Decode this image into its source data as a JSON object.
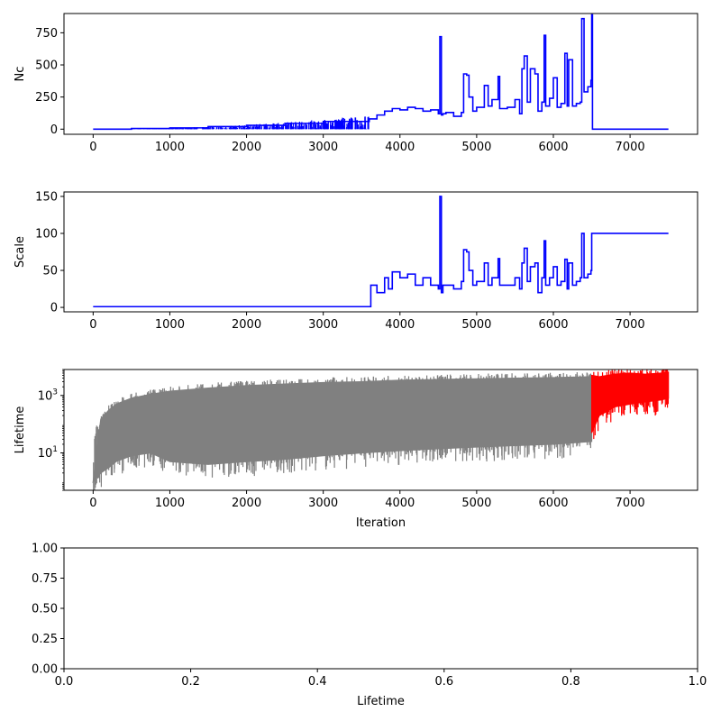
{
  "chart_data": [
    {
      "type": "line",
      "ylabel": "Nc",
      "xlabel": "",
      "xlim": [
        -380,
        7880
      ],
      "ylim": [
        -40,
        900
      ],
      "xticks": [
        0,
        1000,
        2000,
        3000,
        4000,
        5000,
        6000,
        7000
      ],
      "yticks": [
        0,
        250,
        500,
        750
      ],
      "color": "#0000ff",
      "series": [
        {
          "x": [
            0,
            500,
            1000,
            1500,
            2000,
            2500,
            3000,
            3600,
            3700,
            3800,
            3900,
            4000,
            4100,
            4200,
            4300,
            4400,
            4500,
            4520,
            4540,
            4560,
            4600,
            4700,
            4800,
            4830,
            4870,
            4900,
            4950,
            5000,
            5100,
            5150,
            5200,
            5280,
            5300,
            5400,
            5500,
            5560,
            5590,
            5620,
            5660,
            5700,
            5760,
            5800,
            5850,
            5880,
            5900,
            5950,
            6000,
            6050,
            6100,
            6150,
            6180,
            6200,
            6250,
            6300,
            6350,
            6370,
            6400,
            6450,
            6490,
            6500,
            6510,
            7000,
            7500
          ],
          "y": [
            0,
            5,
            10,
            20,
            30,
            45,
            60,
            80,
            110,
            140,
            160,
            150,
            170,
            160,
            140,
            150,
            120,
            720,
            110,
            120,
            130,
            100,
            130,
            430,
            420,
            250,
            140,
            170,
            340,
            180,
            230,
            410,
            160,
            170,
            230,
            120,
            470,
            570,
            210,
            470,
            430,
            140,
            210,
            730,
            180,
            240,
            400,
            170,
            200,
            590,
            180,
            540,
            180,
            200,
            210,
            860,
            290,
            330,
            380,
            890,
            0,
            0,
            0
          ]
        }
      ]
    },
    {
      "type": "line",
      "ylabel": "Scale",
      "xlabel": "",
      "xlim": [
        -380,
        7880
      ],
      "ylim": [
        -6,
        156
      ],
      "xticks": [
        0,
        1000,
        2000,
        3000,
        4000,
        5000,
        6000,
        7000
      ],
      "yticks": [
        0,
        50,
        100,
        150
      ],
      "color": "#0000ff",
      "series": [
        {
          "x": [
            0,
            3600,
            3620,
            3700,
            3800,
            3850,
            3900,
            4000,
            4100,
            4200,
            4300,
            4400,
            4500,
            4520,
            4540,
            4560,
            4700,
            4800,
            4830,
            4870,
            4900,
            4950,
            5000,
            5100,
            5150,
            5200,
            5280,
            5300,
            5400,
            5500,
            5560,
            5590,
            5620,
            5660,
            5700,
            5760,
            5800,
            5850,
            5880,
            5900,
            5950,
            6000,
            6050,
            6100,
            6150,
            6180,
            6200,
            6250,
            6300,
            6350,
            6370,
            6400,
            6450,
            6490,
            6500,
            7000,
            7500
          ],
          "y": [
            1,
            1,
            30,
            20,
            40,
            25,
            48,
            40,
            45,
            30,
            40,
            30,
            25,
            150,
            20,
            30,
            25,
            35,
            78,
            75,
            50,
            30,
            35,
            60,
            30,
            40,
            66,
            30,
            30,
            40,
            25,
            60,
            80,
            35,
            55,
            60,
            20,
            40,
            90,
            30,
            40,
            55,
            30,
            35,
            65,
            25,
            60,
            30,
            35,
            40,
            100,
            40,
            45,
            50,
            100,
            100,
            100
          ]
        }
      ]
    },
    {
      "type": "line",
      "ylabel": "Lifetime",
      "xlabel": "Iteration",
      "yscale": "log",
      "xlim": [
        -380,
        7880
      ],
      "ylim": [
        0.5,
        8000
      ],
      "xticks": [
        0,
        1000,
        2000,
        3000,
        4000,
        5000,
        6000,
        7000
      ],
      "yticks": [
        10,
        1000
      ],
      "yticklabels": [
        "10^1",
        "10^3"
      ],
      "series": [
        {
          "color": "#808080",
          "x": [
            0,
            100,
            200,
            300,
            500,
            750,
            1000,
            1500,
            2000,
            2500,
            3000,
            3500,
            4000,
            4500,
            5000,
            5500,
            6000,
            6500
          ],
          "y_upper": [
            1,
            150,
            300,
            500,
            800,
            1100,
            1400,
            1800,
            2200,
            2500,
            2800,
            3000,
            3400,
            3600,
            3800,
            4000,
            4200,
            4500
          ],
          "y_lower": [
            1,
            2,
            3,
            5,
            8,
            10,
            5,
            4,
            5,
            6,
            8,
            10,
            12,
            14,
            16,
            18,
            20,
            25
          ]
        },
        {
          "color": "#ff0000",
          "x": [
            6500,
            6600,
            6800,
            7000,
            7200,
            7400,
            7500
          ],
          "y_upper": [
            5000,
            4500,
            5500,
            6000,
            5500,
            6000,
            6500
          ],
          "y_lower": [
            50,
            200,
            400,
            500,
            600,
            700,
            800
          ]
        }
      ]
    },
    {
      "type": "line",
      "ylabel": "",
      "xlabel": "Lifetime",
      "xlim": [
        0,
        1
      ],
      "ylim": [
        0,
        1
      ],
      "xticks": [
        0.0,
        0.2,
        0.4,
        0.6,
        0.8,
        1.0
      ],
      "xticklabels": [
        "0.0",
        "0.2",
        "0.4",
        "0.6",
        "0.8",
        "1.0"
      ],
      "yticks": [
        0.0,
        0.25,
        0.5,
        0.75,
        1.0
      ],
      "yticklabels": [
        "0.00",
        "0.25",
        "0.50",
        "0.75",
        "1.00"
      ],
      "series": []
    }
  ]
}
